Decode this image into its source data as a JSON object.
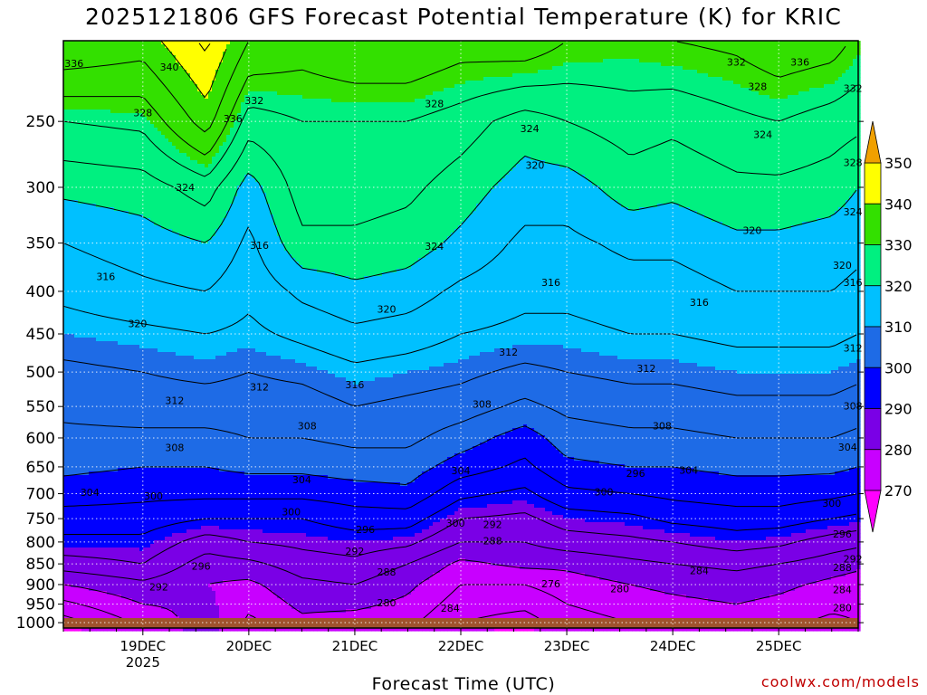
{
  "title": "2025121806 GFS Forecast Potential Temperature (K) for KRIC",
  "credit": "coolwx.com/models",
  "chart_data": {
    "type": "heatmap",
    "title": "2025121806 GFS Forecast Potential Temperature (K) for KRIC",
    "xlabel": "Forecast Time (UTC)",
    "ylabel": "",
    "x_ticks": [
      {
        "label": "19DEC",
        "sub": "2025",
        "day": 19
      },
      {
        "label": "20DEC",
        "sub": "",
        "day": 20
      },
      {
        "label": "21DEC",
        "sub": "",
        "day": 21
      },
      {
        "label": "22DEC",
        "sub": "",
        "day": 22
      },
      {
        "label": "23DEC",
        "sub": "",
        "day": 23
      },
      {
        "label": "24DEC",
        "sub": "",
        "day": 24
      },
      {
        "label": "25DEC",
        "sub": "",
        "day": 25
      }
    ],
    "xlim_days": [
      18.25,
      25.75
    ],
    "y_ticks": [
      250,
      300,
      350,
      400,
      450,
      500,
      550,
      600,
      650,
      700,
      750,
      800,
      850,
      900,
      950,
      1000
    ],
    "ylim_hpa": [
      200,
      1015
    ],
    "y_scale": "log",
    "grid": true,
    "colorbar": {
      "levels": [
        270,
        280,
        290,
        300,
        310,
        320,
        330,
        340,
        350
      ],
      "colors": [
        "#ff00ff",
        "#c800ff",
        "#7a00e6",
        "#0000ff",
        "#1e6be6",
        "#00c0ff",
        "#00f080",
        "#33e000",
        "#ffff00",
        "#f0a000"
      ]
    },
    "profiles": [
      {
        "day": 18.25,
        "theta": [
          340,
          328,
          321,
          316,
          313,
          310,
          307,
          305,
          303,
          301,
          298,
          294,
          291,
          286,
          280,
          275
        ]
      },
      {
        "day": 19.0,
        "theta": [
          338,
          329,
          322,
          318,
          315,
          311,
          308,
          306,
          303,
          300,
          297,
          294,
          291,
          288,
          283,
          280
        ]
      },
      {
        "day": 19.6,
        "theta": [
          345,
          338,
          326,
          320,
          316,
          312,
          309,
          306,
          303,
          300,
          297,
          292,
          286,
          282,
          280,
          281
        ]
      },
      {
        "day": 20.0,
        "theta": [
          336,
          326,
          318,
          315,
          313,
          311,
          308,
          306,
          304,
          301,
          297,
          292,
          288,
          283,
          279,
          277
        ]
      },
      {
        "day": 20.5,
        "theta": [
          334,
          328,
          326,
          323,
          317,
          313,
          309,
          306,
          304,
          301,
          297,
          292,
          289,
          286,
          283,
          281
        ]
      },
      {
        "day": 21.0,
        "theta": [
          336,
          328,
          326,
          323,
          319,
          315,
          311,
          308,
          305,
          302,
          298,
          294,
          290,
          287,
          284,
          281
        ]
      },
      {
        "day": 21.5,
        "theta": [
          336,
          328,
          325,
          322,
          318,
          314,
          310,
          307,
          305,
          302,
          299,
          294,
          289,
          284,
          281,
          279
        ]
      },
      {
        "day": 22.0,
        "theta": [
          334,
          326,
          322,
          319,
          315,
          312,
          309,
          306,
          302,
          298,
          293,
          288,
          284,
          279,
          276,
          274
        ]
      },
      {
        "day": 22.6,
        "theta": [
          335,
          322,
          318,
          315,
          313,
          311,
          307,
          303,
          298,
          295,
          291,
          287,
          284,
          281,
          276,
          273
        ]
      },
      {
        "day": 23.0,
        "theta": [
          332,
          324,
          318,
          315,
          313,
          311,
          308,
          305,
          302,
          299,
          295,
          290,
          286,
          281,
          278,
          276
        ]
      },
      {
        "day": 23.6,
        "theta": [
          331,
          326,
          322,
          317,
          314,
          312,
          309,
          306,
          303,
          300,
          296,
          291,
          287,
          283,
          280,
          278
        ]
      },
      {
        "day": 24.0,
        "theta": [
          332,
          325,
          321,
          317,
          314,
          312,
          309,
          306,
          303,
          300,
          297,
          293,
          288,
          284,
          281,
          279
        ]
      },
      {
        "day": 24.6,
        "theta": [
          333,
          327,
          323,
          319,
          316,
          313,
          310,
          307,
          304,
          301,
          298,
          294,
          290,
          285,
          282,
          280
        ]
      },
      {
        "day": 25.0,
        "theta": [
          335,
          328,
          323,
          319,
          316,
          313,
          310,
          307,
          304,
          301,
          298,
          294,
          289,
          284,
          281,
          279
        ]
      },
      {
        "day": 25.5,
        "theta": [
          334,
          326,
          322,
          318,
          316,
          313,
          310,
          307,
          304,
          301,
          297,
          292,
          286,
          282,
          279,
          277
        ]
      },
      {
        "day": 25.75,
        "theta": [
          331,
          325,
          320,
          317,
          315,
          312,
          309,
          306,
          303,
          300,
          296,
          291,
          285,
          281,
          278,
          277
        ]
      }
    ],
    "profile_levels_hpa": [
      200,
      250,
      300,
      350,
      400,
      450,
      500,
      550,
      600,
      650,
      700,
      750,
      800,
      850,
      900,
      950
    ],
    "contour_labels": [
      {
        "text": "336",
        "day": 18.35,
        "p": 213
      },
      {
        "text": "340",
        "day": 19.25,
        "p": 215
      },
      {
        "text": "328",
        "day": 19.0,
        "p": 244
      },
      {
        "text": "336",
        "day": 19.85,
        "p": 248
      },
      {
        "text": "332",
        "day": 20.05,
        "p": 236
      },
      {
        "text": "328",
        "day": 21.75,
        "p": 238
      },
      {
        "text": "324",
        "day": 22.65,
        "p": 255
      },
      {
        "text": "332",
        "day": 24.6,
        "p": 212
      },
      {
        "text": "336",
        "day": 25.2,
        "p": 212
      },
      {
        "text": "328",
        "day": 24.8,
        "p": 227
      },
      {
        "text": "332",
        "day": 25.8,
        "p": 228
      },
      {
        "text": "324",
        "day": 24.85,
        "p": 259
      },
      {
        "text": "328",
        "day": 25.9,
        "p": 280
      },
      {
        "text": "320",
        "day": 22.7,
        "p": 282
      },
      {
        "text": "324",
        "day": 19.4,
        "p": 300
      },
      {
        "text": "324",
        "day": 25.85,
        "p": 321
      },
      {
        "text": "316",
        "day": 20.1,
        "p": 352
      },
      {
        "text": "324",
        "day": 21.75,
        "p": 353
      },
      {
        "text": "320",
        "day": 24.75,
        "p": 338
      },
      {
        "text": "320",
        "day": 25.6,
        "p": 372
      },
      {
        "text": "316",
        "day": 18.65,
        "p": 384
      },
      {
        "text": "316",
        "day": 22.85,
        "p": 390
      },
      {
        "text": "316",
        "day": 24.25,
        "p": 412
      },
      {
        "text": "316",
        "day": 26.05,
        "p": 390
      },
      {
        "text": "320",
        "day": 18.95,
        "p": 437
      },
      {
        "text": "320",
        "day": 21.3,
        "p": 420
      },
      {
        "text": "312",
        "day": 22.45,
        "p": 473
      },
      {
        "text": "312",
        "day": 25.95,
        "p": 468
      },
      {
        "text": "312",
        "day": 23.75,
        "p": 495
      },
      {
        "text": "312",
        "day": 19.3,
        "p": 541
      },
      {
        "text": "312",
        "day": 20.1,
        "p": 521
      },
      {
        "text": "316",
        "day": 21.0,
        "p": 518
      },
      {
        "text": "308",
        "day": 22.2,
        "p": 546
      },
      {
        "text": "308",
        "day": 20.55,
        "p": 580
      },
      {
        "text": "308",
        "day": 23.9,
        "p": 580
      },
      {
        "text": "308",
        "day": 25.95,
        "p": 549
      },
      {
        "text": "308",
        "day": 19.3,
        "p": 616
      },
      {
        "text": "304",
        "day": 25.65,
        "p": 615
      },
      {
        "text": "304",
        "day": 22.0,
        "p": 657
      },
      {
        "text": "304",
        "day": 24.15,
        "p": 656
      },
      {
        "text": "304",
        "day": 20.5,
        "p": 673
      },
      {
        "text": "304",
        "day": 18.5,
        "p": 697
      },
      {
        "text": "300",
        "day": 19.1,
        "p": 704
      },
      {
        "text": "300",
        "day": 23.35,
        "p": 696
      },
      {
        "text": "296",
        "day": 23.65,
        "p": 662
      },
      {
        "text": "300",
        "day": 25.5,
        "p": 719
      },
      {
        "text": "300",
        "day": 20.4,
        "p": 736
      },
      {
        "text": "300",
        "day": 21.95,
        "p": 759
      },
      {
        "text": "292",
        "day": 22.3,
        "p": 762
      },
      {
        "text": "296",
        "day": 21.1,
        "p": 773
      },
      {
        "text": "296",
        "day": 25.6,
        "p": 782
      },
      {
        "text": "288",
        "day": 22.3,
        "p": 797
      },
      {
        "text": "292",
        "day": 21.0,
        "p": 821
      },
      {
        "text": "292",
        "day": 25.9,
        "p": 838
      },
      {
        "text": "296",
        "day": 19.55,
        "p": 855
      },
      {
        "text": "288",
        "day": 25.6,
        "p": 858
      },
      {
        "text": "284",
        "day": 24.25,
        "p": 866
      },
      {
        "text": "288",
        "day": 21.3,
        "p": 869
      },
      {
        "text": "276",
        "day": 22.85,
        "p": 898
      },
      {
        "text": "280",
        "day": 23.5,
        "p": 910
      },
      {
        "text": "292",
        "day": 19.15,
        "p": 906
      },
      {
        "text": "284",
        "day": 25.6,
        "p": 913
      },
      {
        "text": "280",
        "day": 21.3,
        "p": 946
      },
      {
        "text": "280",
        "day": 25.6,
        "p": 960
      },
      {
        "text": "284",
        "day": 21.9,
        "p": 961
      }
    ]
  }
}
